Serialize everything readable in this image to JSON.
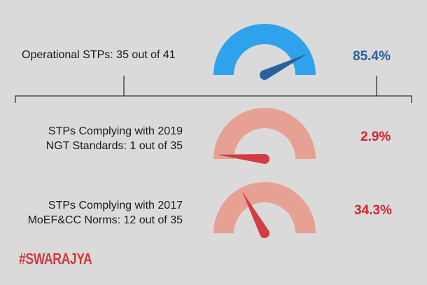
{
  "rows": [
    {
      "label_lines": [
        "Operational STPs: 35 out of 41"
      ],
      "value_text": "85.4%",
      "percent": 85.4
    },
    {
      "label_lines": [
        "STPs Complying with 2019",
        "NGT Standards: 1 out of 35"
      ],
      "value_text": "2.9%",
      "percent": 2.9
    },
    {
      "label_lines": [
        "STPs Complying with 2017",
        "MoEF&CC Norms: 12 out of 35"
      ],
      "value_text": "34.3%",
      "percent": 34.3
    }
  ],
  "logo": "#SWARAJYA",
  "colors": {
    "blue_arc": "#2ea3ec",
    "blue_needle": "#2b5f9e",
    "blue_text": "#2b5f9e",
    "red_arc": "#e6a193",
    "red_needle": "#d23c42",
    "red_text": "#d0262e",
    "background": "#dadada"
  },
  "chart_data": {
    "type": "gauge",
    "categories": [
      "Operational STPs: 35 out of 41",
      "STPs Complying with 2019 NGT Standards: 1 out of 35",
      "STPs Complying with 2017 MoEF&CC Norms: 12 out of 35"
    ],
    "values": [
      85.4,
      2.9,
      34.3
    ],
    "range": [
      0,
      100
    ]
  }
}
